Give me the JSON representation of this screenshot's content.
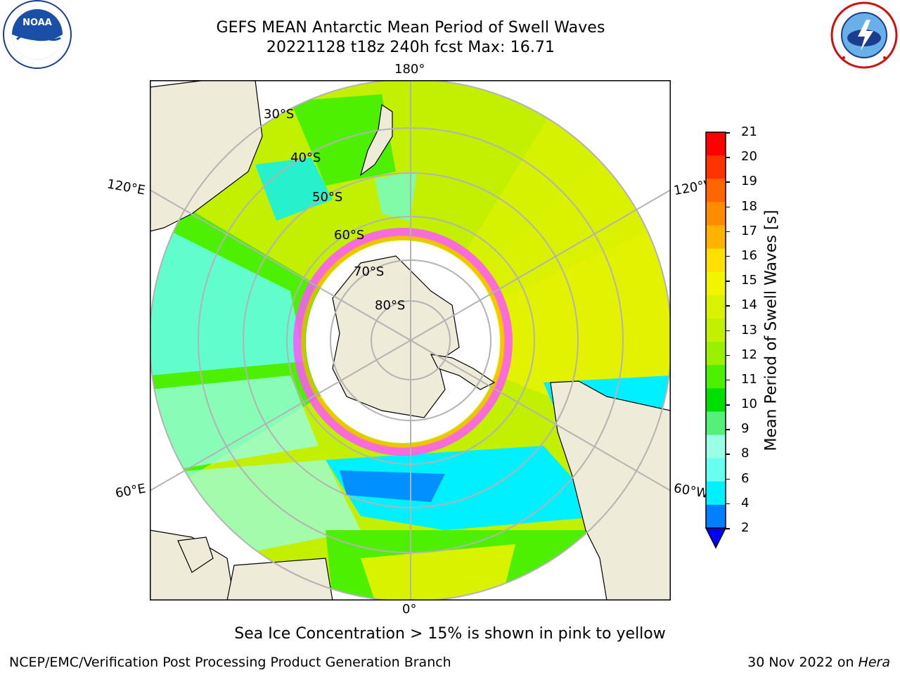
{
  "header": {
    "title_line1": "GEFS MEAN Antarctic Mean Period of Swell Waves",
    "title_line2": "20221128 t18z 240h fcst   Max: 16.71"
  },
  "logos": {
    "left": {
      "icon": "noaa-logo-icon",
      "text": "NOAA"
    },
    "right": {
      "icon": "nws-logo-icon",
      "text": "NATIONAL WEATHER SERVICE"
    }
  },
  "map": {
    "projection": "south-polar-stereographic",
    "longitude_labels": {
      "top": "180°",
      "bottom": "0°",
      "upper_left": "120°E",
      "upper_right": "120°W",
      "lower_left": "60°E",
      "lower_right": "60°W"
    },
    "latitude_labels": [
      "30°S",
      "40°S",
      "50°S",
      "60°S",
      "70°S",
      "80°S"
    ],
    "land_color": "#efebd9",
    "grid_color": "#b3b3b3"
  },
  "colorbar": {
    "title": "Mean Period of Swell Waves [s]",
    "ticks": [
      "21",
      "20",
      "19",
      "18",
      "17",
      "16",
      "15",
      "14",
      "13",
      "12",
      "11",
      "10",
      "9",
      "8",
      "6",
      "4",
      "2"
    ],
    "colors_top_to_bottom": [
      "#ff0000",
      "#ff3300",
      "#ff6600",
      "#ff8c00",
      "#ffb300",
      "#ffe000",
      "#f2f500",
      "#d9f200",
      "#c2f000",
      "#99f000",
      "#4cf000",
      "#00e000",
      "#55f07a",
      "#99ffe6",
      "#66fff0",
      "#00f0ff",
      "#007fff",
      "#0000ff"
    ]
  },
  "notes": {
    "sea_ice": "Sea Ice Concentration > 15% is shown in pink to yellow"
  },
  "footer": {
    "left": "NCEP/EMC/Verification Post Processing Product Generation Branch",
    "right_date": "30 Nov 2022 on ",
    "right_machine": "Hera"
  }
}
